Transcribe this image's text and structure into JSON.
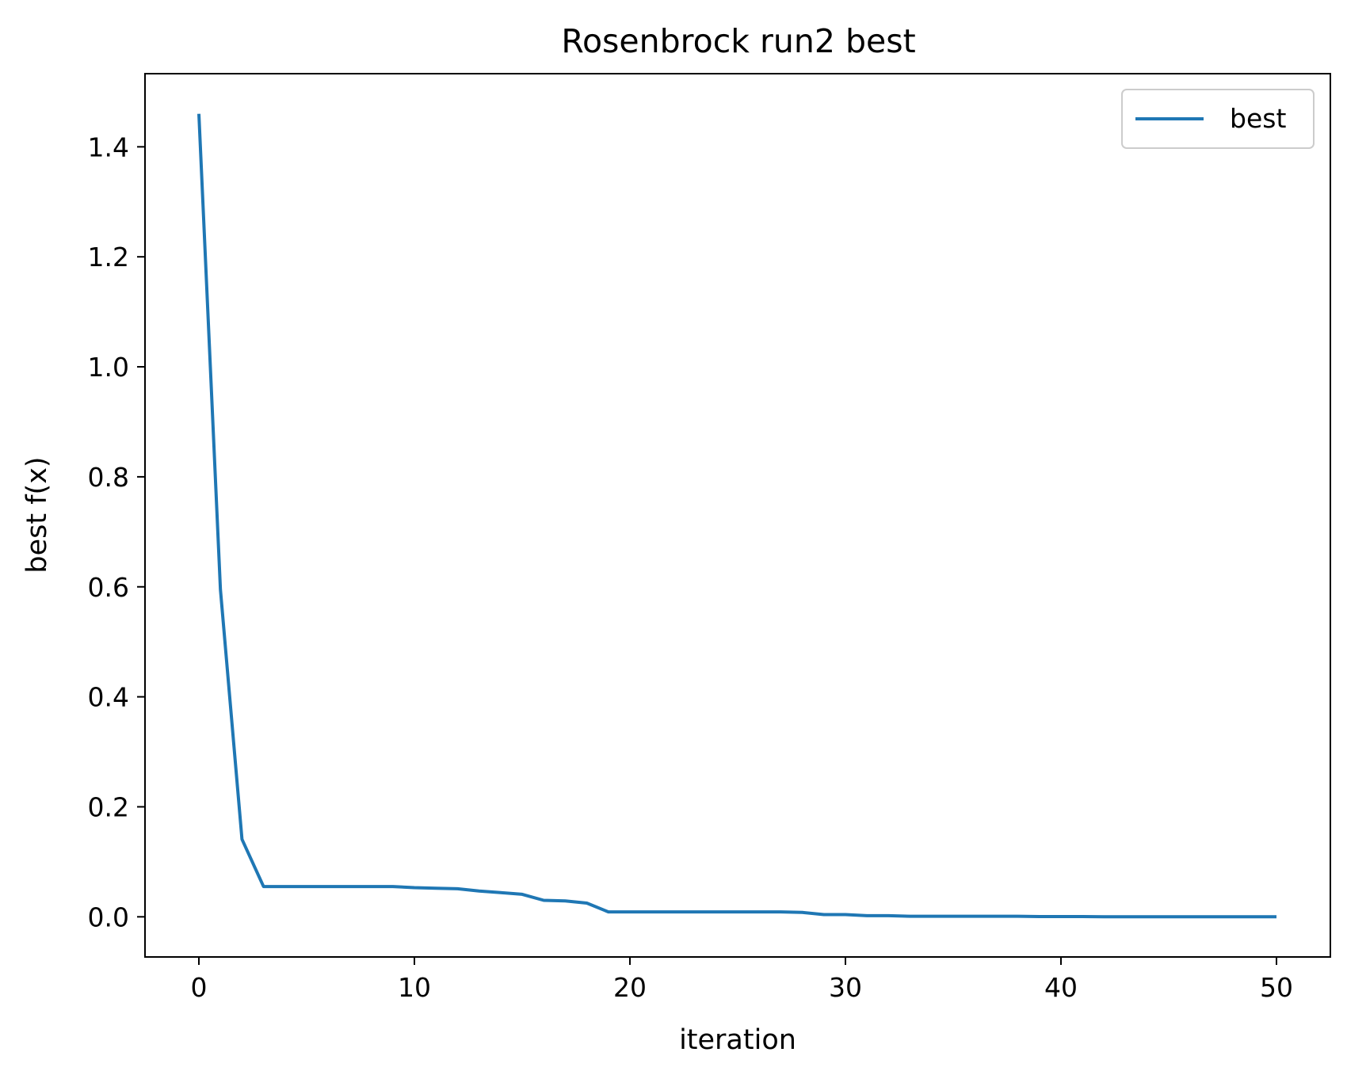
{
  "chart_data": {
    "type": "line",
    "title": "Rosenbrock run2 best",
    "xlabel": "iteration",
    "ylabel": "best f(x)",
    "xlim": [
      -2.5,
      52.5
    ],
    "ylim": [
      -0.073,
      1.533
    ],
    "xticks": [
      0,
      10,
      20,
      30,
      40,
      50
    ],
    "yticks": [
      0.0,
      0.2,
      0.4,
      0.6,
      0.8,
      1.0,
      1.2,
      1.4
    ],
    "xtick_labels": [
      "0",
      "10",
      "20",
      "30",
      "40",
      "50"
    ],
    "ytick_labels": [
      "0.0",
      "0.2",
      "0.4",
      "0.6",
      "0.8",
      "1.0",
      "1.2",
      "1.4"
    ],
    "grid": false,
    "legend": {
      "placement": "top-right",
      "entries": [
        "best"
      ]
    },
    "series": [
      {
        "name": "best",
        "color": "#1f77b4",
        "x": [
          0,
          1,
          2,
          3,
          4,
          5,
          6,
          7,
          8,
          9,
          10,
          11,
          12,
          13,
          14,
          15,
          16,
          17,
          18,
          19,
          20,
          21,
          22,
          23,
          24,
          25,
          26,
          27,
          28,
          29,
          30,
          31,
          32,
          33,
          34,
          35,
          36,
          37,
          38,
          39,
          40,
          41,
          42,
          43,
          44,
          45,
          46,
          47,
          48,
          49,
          50
        ],
        "y": [
          1.46,
          0.595,
          0.141,
          0.055,
          0.055,
          0.055,
          0.055,
          0.055,
          0.055,
          0.055,
          0.053,
          0.052,
          0.051,
          0.047,
          0.044,
          0.041,
          0.03,
          0.029,
          0.025,
          0.009,
          0.009,
          0.009,
          0.009,
          0.009,
          0.009,
          0.009,
          0.009,
          0.009,
          0.008,
          0.004,
          0.004,
          0.002,
          0.002,
          0.001,
          0.001,
          0.001,
          0.001,
          0.001,
          0.001,
          0.0005,
          0.0005,
          0.0005,
          0.0002,
          0.0002,
          0.0002,
          0.0002,
          0.0002,
          0.0002,
          0.0002,
          0.0002,
          0.0002
        ]
      }
    ]
  }
}
